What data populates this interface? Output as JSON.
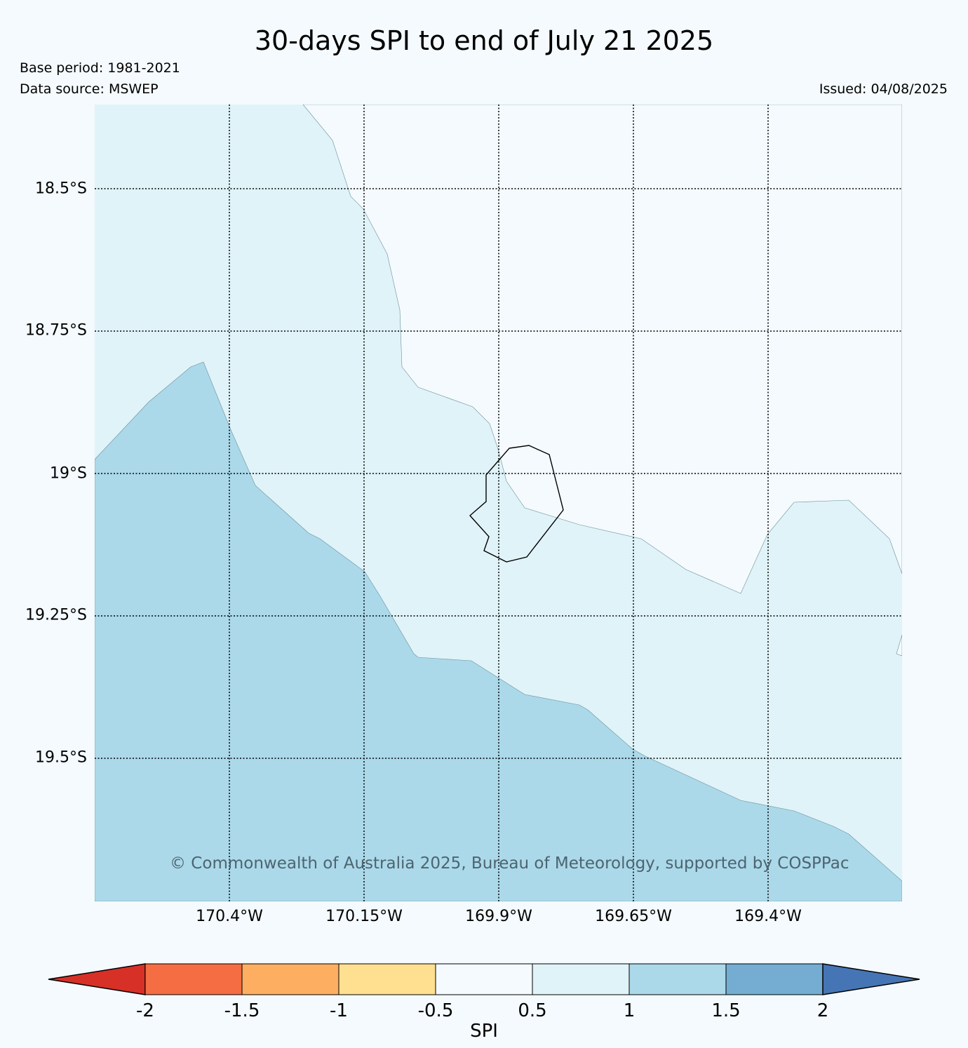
{
  "title": "30-days SPI to end of July 21 2025",
  "base_period": "Base period: 1981-2021",
  "data_source": "Data source: MSWEP",
  "issued": "Issued: 04/08/2025",
  "copyright": "© Commonwealth of Australia 2025, Bureau of Meteorology, supported by COSPPac",
  "map": {
    "lat_labels": [
      "18.5°S",
      "18.75°S",
      "19°S",
      "19.25°S",
      "19.5°S"
    ],
    "lon_labels": [
      "170.4°W",
      "170.15°W",
      "169.9°W",
      "169.65°W",
      "169.4°W"
    ],
    "colors": {
      "background": "#f4fafd",
      "spi_0_5_to_1": "#e0f3f8",
      "spi_1_to_1_5": "#abd9e9"
    }
  },
  "colorbar": {
    "label": "SPI",
    "ticks": [
      "-2",
      "-1.5",
      "-1",
      "-0.5",
      "0.5",
      "1",
      "1.5",
      "2"
    ],
    "colors": [
      "#d73027",
      "#f46d43",
      "#fdae61",
      "#fee090",
      "#f4fafd",
      "#e0f3f8",
      "#abd9e9",
      "#74add1",
      "#4575b4"
    ]
  }
}
